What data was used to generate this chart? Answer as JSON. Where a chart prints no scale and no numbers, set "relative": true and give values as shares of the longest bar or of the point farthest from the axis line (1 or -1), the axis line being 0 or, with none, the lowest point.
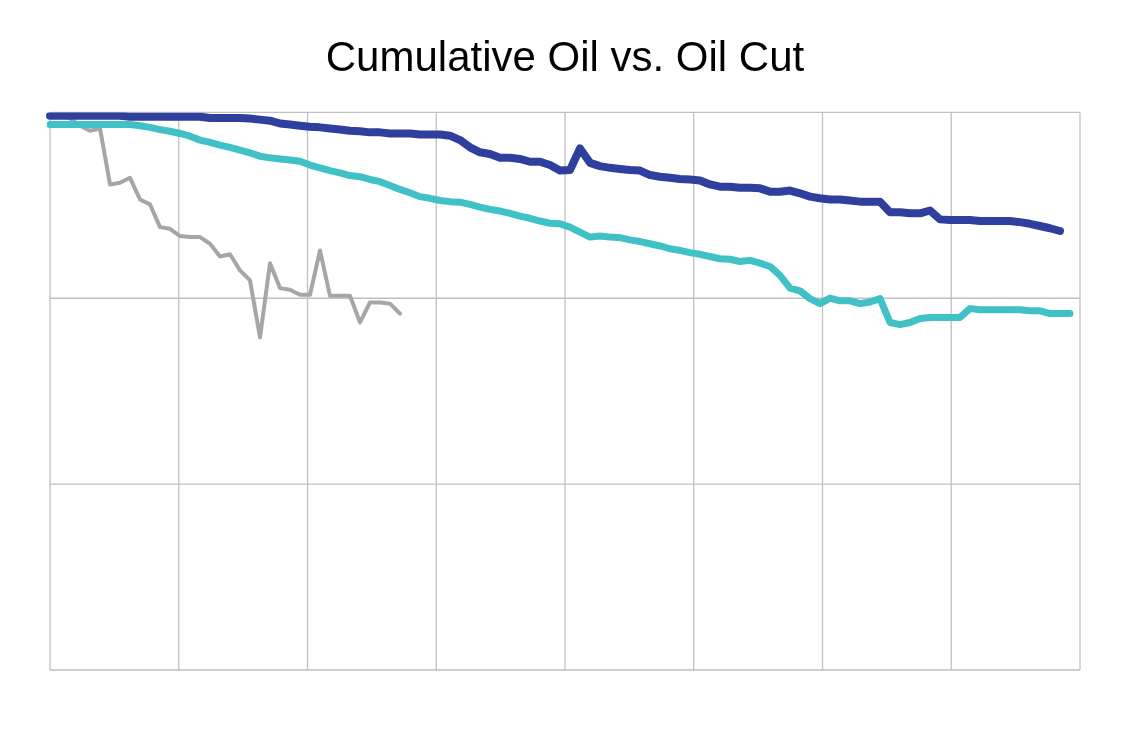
{
  "chart_data": {
    "type": "line",
    "title": "Cumulative Oil vs. Oil Cut",
    "relative": true,
    "grid": true,
    "legend": false,
    "marker": "none",
    "line_style": "solid",
    "categories": [
      null,
      null,
      null,
      null,
      null,
      null,
      null,
      null,
      null,
      null,
      null,
      null,
      null,
      null,
      null,
      null,
      null,
      null,
      null,
      null,
      null,
      null,
      null,
      null,
      null,
      null,
      null,
      null,
      null,
      null,
      null,
      null,
      null,
      null,
      null,
      null,
      null,
      null,
      null,
      null,
      null,
      null,
      null,
      null,
      null,
      null,
      null,
      null,
      null,
      null,
      null,
      null,
      null,
      null,
      null,
      null,
      null,
      null,
      null,
      null,
      null,
      null,
      null,
      null,
      null,
      null,
      null,
      null,
      null,
      null,
      null,
      null,
      null,
      null,
      null,
      null,
      null,
      null,
      null,
      null,
      null,
      null,
      null,
      null,
      null,
      null,
      null,
      null,
      null,
      null,
      null,
      null,
      null,
      null,
      null,
      null,
      null,
      null,
      null,
      null,
      null,
      null,
      null,
      null
    ],
    "series": [
      {
        "color": "#2e3f9e",
        "values": [
          1.0,
          1.0,
          1.0,
          1.0,
          1.0,
          1.0,
          1.0,
          1.0,
          0.998,
          0.998,
          0.998,
          0.998,
          0.998,
          0.998,
          0.998,
          0.998,
          0.996,
          0.996,
          0.996,
          0.996,
          0.995,
          0.993,
          0.991,
          0.986,
          0.984,
          0.982,
          0.98,
          0.979,
          0.977,
          0.975,
          0.973,
          0.972,
          0.97,
          0.97,
          0.968,
          0.968,
          0.968,
          0.966,
          0.966,
          0.966,
          0.964,
          0.956,
          0.943,
          0.934,
          0.931,
          0.924,
          0.924,
          0.922,
          0.917,
          0.917,
          0.911,
          0.901,
          0.902,
          0.941,
          0.915,
          0.909,
          0.906,
          0.904,
          0.902,
          0.901,
          0.893,
          0.89,
          0.888,
          0.886,
          0.885,
          0.883,
          0.876,
          0.872,
          0.872,
          0.87,
          0.87,
          0.869,
          0.863,
          0.863,
          0.865,
          0.86,
          0.854,
          0.851,
          0.849,
          0.849,
          0.847,
          0.845,
          0.845,
          0.845,
          0.826,
          0.826,
          0.824,
          0.824,
          0.829,
          0.813,
          0.812,
          0.812,
          0.812,
          0.81,
          0.81,
          0.81,
          0.81,
          0.808,
          0.805,
          0.801,
          0.797,
          0.792,
          null,
          null
        ]
      },
      {
        "color": "#3fc1c6",
        "values": [
          0.984,
          0.984,
          0.984,
          0.984,
          0.984,
          0.984,
          0.984,
          0.984,
          0.984,
          0.982,
          0.979,
          0.975,
          0.972,
          0.968,
          0.963,
          0.956,
          0.952,
          0.947,
          0.943,
          0.938,
          0.933,
          0.927,
          0.924,
          0.922,
          0.92,
          0.918,
          0.911,
          0.906,
          0.901,
          0.897,
          0.892,
          0.89,
          0.885,
          0.881,
          0.874,
          0.867,
          0.861,
          0.854,
          0.851,
          0.847,
          0.845,
          0.844,
          0.84,
          0.835,
          0.831,
          0.828,
          0.824,
          0.819,
          0.815,
          0.81,
          0.806,
          0.805,
          0.799,
          0.79,
          0.781,
          0.783,
          0.781,
          0.78,
          0.776,
          0.773,
          0.769,
          0.765,
          0.76,
          0.757,
          0.753,
          0.75,
          0.746,
          0.742,
          0.741,
          0.737,
          0.739,
          0.734,
          0.728,
          0.712,
          0.689,
          0.684,
          0.67,
          0.661,
          0.671,
          0.666,
          0.666,
          0.661,
          0.664,
          0.67,
          0.627,
          0.623,
          0.627,
          0.634,
          0.636,
          0.636,
          0.636,
          0.636,
          0.652,
          0.65,
          0.65,
          0.65,
          0.65,
          0.65,
          0.648,
          0.648,
          0.643,
          0.643,
          0.643,
          null
        ]
      },
      {
        "color": "#a6a6a6",
        "values": [
          null,
          null,
          0.995,
          0.982,
          0.973,
          0.977,
          0.876,
          0.879,
          0.888,
          0.849,
          0.84,
          0.799,
          0.796,
          0.783,
          0.781,
          0.781,
          0.769,
          0.746,
          0.75,
          0.721,
          0.703,
          0.6,
          0.734,
          0.689,
          0.686,
          0.677,
          0.677,
          0.757,
          0.675,
          0.675,
          0.675,
          0.627,
          0.663,
          0.663,
          0.661,
          0.643,
          null,
          null,
          null,
          null,
          null,
          null,
          null,
          null,
          null,
          null,
          null,
          null,
          null,
          null,
          null,
          null,
          null,
          null,
          null,
          null,
          null,
          null,
          null,
          null,
          null,
          null,
          null,
          null,
          null,
          null,
          null,
          null,
          null,
          null,
          null,
          null,
          null,
          null,
          null,
          null,
          null,
          null,
          null,
          null,
          null,
          null,
          null,
          null,
          null,
          null,
          null,
          null,
          null,
          null,
          null,
          null,
          null,
          null,
          null,
          null,
          null,
          null,
          null,
          null,
          null,
          null,
          null,
          null
        ]
      }
    ]
  }
}
